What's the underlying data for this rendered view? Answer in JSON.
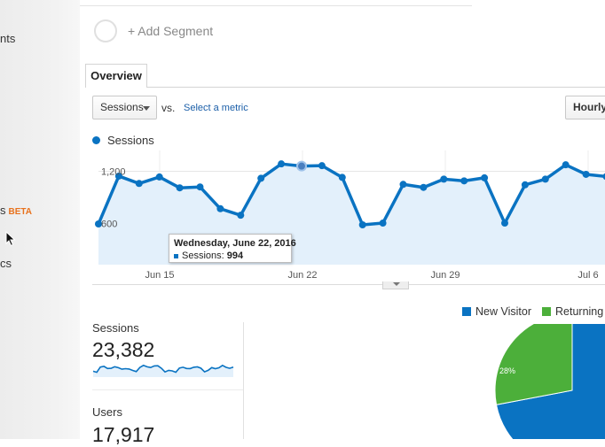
{
  "sidebar": {
    "items": [
      {
        "label": "nts"
      },
      {
        "label": "s",
        "badge": "BETA"
      },
      {
        "label": "cs"
      }
    ]
  },
  "segment": {
    "add_label": "+ Add Segment"
  },
  "tabs": [
    {
      "label": "Overview",
      "active": true
    }
  ],
  "controls": {
    "metric_selected": "Sessions",
    "vs_label": "vs.",
    "select_metric_label": "Select a metric",
    "interval_button": "Hourly"
  },
  "colors": {
    "accent": "#0a73c2",
    "area": "#e3f0fb",
    "returning": "#4caf3a"
  },
  "chart_data": {
    "type": "line",
    "series": [
      {
        "name": "Sessions",
        "values": [
          595,
          1145,
          1060,
          1135,
          1010,
          1020,
          770,
          695,
          1120,
          1285,
          1260,
          1265,
          1130,
          585,
          605,
          1050,
          1015,
          1110,
          1090,
          1125,
          605,
          1045,
          1110,
          1275,
          1165,
          1140
        ]
      }
    ],
    "x_ticks": [
      "Jun 15",
      "Jun 22",
      "Jun 29",
      "Jul 6"
    ],
    "y_ticks": [
      "1,200",
      "600"
    ],
    "ylim": [
      0,
      1400
    ],
    "grid": true,
    "tooltip": {
      "date": "Wednesday, June 22, 2016",
      "series_label": "Sessions:",
      "value": "994"
    }
  },
  "metrics": [
    {
      "label": "Sessions",
      "value": "23,382"
    },
    {
      "label": "Users",
      "value": "17,917"
    }
  ],
  "pie": {
    "legend": [
      {
        "label": "New Visitor",
        "color": "#0a73c2"
      },
      {
        "label": "Returning",
        "color": "#4caf3a"
      }
    ],
    "slices": [
      {
        "label": "New Visitor",
        "percent": 72
      },
      {
        "label": "Returning",
        "percent": 28
      }
    ],
    "returning_pct_label": "28%"
  }
}
